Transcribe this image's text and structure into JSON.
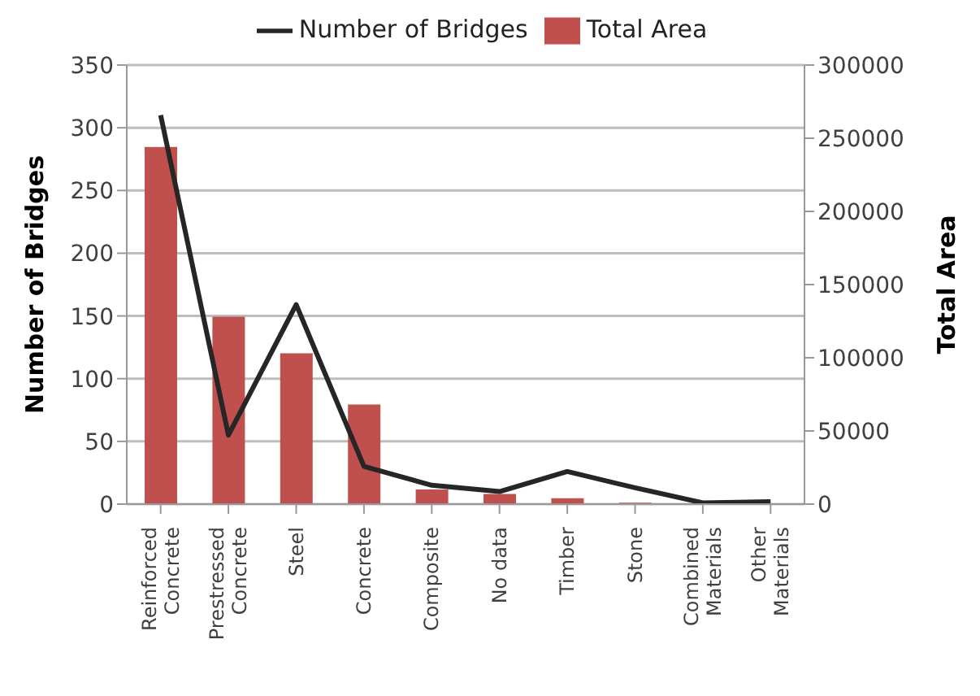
{
  "chart_data": {
    "type": "bar",
    "categories": [
      "Reinforced Concrete",
      "Prestressed Concrete",
      "Steel",
      "Concrete",
      "Composite",
      "No data",
      "Timber",
      "Stone",
      "Combined Materials",
      "Other Materials"
    ],
    "series": [
      {
        "name": "Total Area",
        "axis": "y2",
        "color": "#c0504d",
        "values": [
          244000,
          128000,
          103000,
          68000,
          10000,
          7000,
          4000,
          1000,
          0,
          0
        ]
      },
      {
        "name": "Number of Bridges",
        "type": "line",
        "color": "#262626",
        "values": [
          310,
          55,
          159,
          30,
          15,
          10,
          26,
          13,
          1,
          2
        ]
      }
    ],
    "ylabel": "Number of Bridges",
    "y2label": "Total Area",
    "ylim": [
      0,
      350
    ],
    "yticks": [
      0,
      50,
      100,
      150,
      200,
      250,
      300,
      350
    ],
    "y2lim": [
      0,
      300000
    ],
    "y2ticks": [
      0,
      50000,
      100000,
      150000,
      200000,
      250000,
      300000
    ],
    "grid": "y",
    "legend": "top",
    "marker": "none"
  }
}
